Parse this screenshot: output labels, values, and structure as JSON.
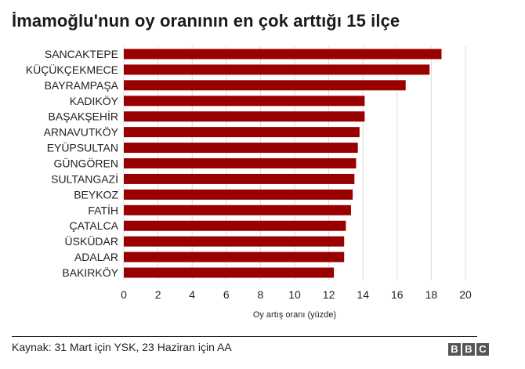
{
  "title": "İmamoğlu'nun oy oranının en çok arttığı 15 ilçe",
  "source": "Kaynak: 31 Mart için YSK, 23 Haziran için AA",
  "logo": [
    "B",
    "B",
    "C"
  ],
  "colors": {
    "bar": "#990000",
    "grid": "#dddddd",
    "text": "#222222"
  },
  "chart_data": {
    "type": "bar",
    "orientation": "horizontal",
    "title": "İmamoğlu'nun oy oranının en çok arttığı 15 ilçe",
    "xlabel": "Oy artış oranı (yüzde)",
    "ylabel": "",
    "xlim": [
      0,
      20
    ],
    "xticks": [
      0,
      2,
      4,
      6,
      8,
      10,
      12,
      14,
      16,
      18,
      20
    ],
    "grid": true,
    "categories": [
      "SANCAKTEPE",
      "KÜÇÜKÇEKMECE",
      "BAYRAMPAŞA",
      "KADIKÖY",
      "BAŞAKŞEHİR",
      "ARNAVUTKÖY",
      "EYÜPSULTAN",
      "GÜNGÖREN",
      "SULTANGAZİ",
      "BEYKOZ",
      "FATİH",
      "ÇATALCA",
      "ÜSKÜDAR",
      "ADALAR",
      "BAKIRKÖY"
    ],
    "values": [
      18.6,
      17.9,
      16.5,
      14.1,
      14.1,
      13.8,
      13.7,
      13.6,
      13.5,
      13.4,
      13.3,
      13.0,
      12.9,
      12.9,
      12.3
    ]
  }
}
